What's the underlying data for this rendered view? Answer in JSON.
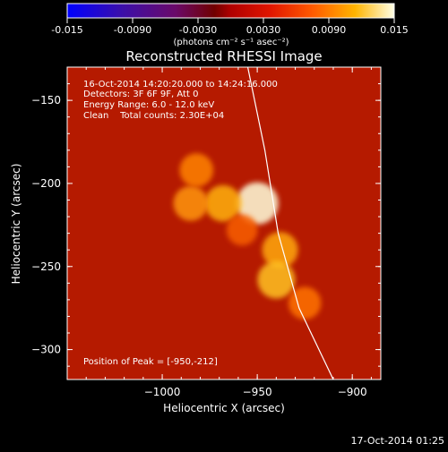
{
  "footer_timestamp": "17-Oct-2014 01:25",
  "colorbar": {
    "ticks": [
      "-0.015",
      "-0.0090",
      "-0.0030",
      "0.0030",
      "0.0090",
      "0.015"
    ],
    "unit_label": "(photons cm⁻² s⁻¹ asec⁻²)",
    "range": [
      -0.015,
      0.015
    ]
  },
  "chart_data": {
    "type": "heatmap",
    "title": "Reconstructed RHESSI Image",
    "xlabel": "Heliocentric X (arcsec)",
    "ylabel": "Heliocentric Y (arcsec)",
    "xlim": [
      -1050,
      -885
    ],
    "ylim": [
      -318,
      -130
    ],
    "xticks": [
      {
        "value": -1000,
        "label": "−1000"
      },
      {
        "value": -950,
        "label": "−950"
      },
      {
        "value": -900,
        "label": "−900"
      }
    ],
    "yticks": [
      {
        "value": -150,
        "label": "−150"
      },
      {
        "value": -200,
        "label": "−200"
      },
      {
        "value": -250,
        "label": "−250"
      },
      {
        "value": -300,
        "label": "−300"
      }
    ],
    "annotations": [
      "16-Oct-2014 14:20:20.000 to 14:24:16.000",
      "Detectors: 3F 6F 9F, Att 0",
      "Energy Range: 6.0 - 12.0 keV",
      "Clean    Total counts: 2.30E+04"
    ],
    "peak_label": "Position of Peak = [-950,-212]",
    "peak": [
      -950,
      -212
    ],
    "sources": [
      {
        "x": -950,
        "y": -212,
        "flux": 0.015
      },
      {
        "x": -968,
        "y": -212,
        "flux": 0.0115
      },
      {
        "x": -985,
        "y": -212,
        "flux": 0.0105
      },
      {
        "x": -982,
        "y": -192,
        "flux": 0.0098
      },
      {
        "x": -938,
        "y": -240,
        "flux": 0.0112
      },
      {
        "x": -940,
        "y": -258,
        "flux": 0.0122
      },
      {
        "x": -925,
        "y": -272,
        "flux": 0.0092
      },
      {
        "x": -958,
        "y": -228,
        "flux": 0.0082
      }
    ],
    "limb_curve": [
      {
        "x": -955,
        "y": -130
      },
      {
        "x": -946,
        "y": -180
      },
      {
        "x": -939,
        "y": -230
      },
      {
        "x": -928,
        "y": -275
      },
      {
        "x": -910,
        "y": -318
      }
    ]
  }
}
